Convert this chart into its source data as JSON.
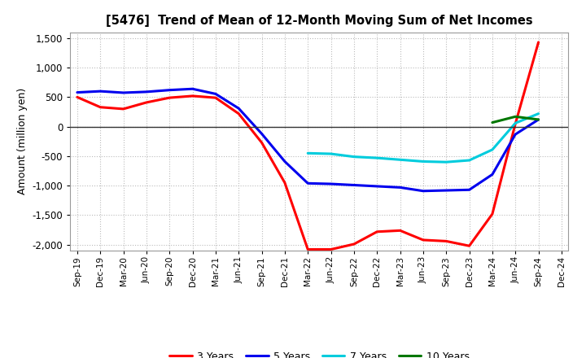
{
  "title": "[5476]  Trend of Mean of 12-Month Moving Sum of Net Incomes",
  "ylabel": "Amount (million yen)",
  "background_color": "#ffffff",
  "grid_color": "#bbbbbb",
  "xlim_labels": [
    "Sep-19",
    "Dec-19",
    "Mar-20",
    "Jun-20",
    "Sep-20",
    "Dec-20",
    "Mar-21",
    "Jun-21",
    "Sep-21",
    "Dec-21",
    "Mar-22",
    "Jun-22",
    "Sep-22",
    "Dec-22",
    "Mar-23",
    "Jun-23",
    "Sep-23",
    "Dec-23",
    "Mar-24",
    "Jun-24",
    "Sep-24",
    "Dec-24"
  ],
  "ylim": [
    -2100,
    1600
  ],
  "yticks": [
    -2000,
    -1500,
    -1000,
    -500,
    0,
    500,
    1000,
    1500
  ],
  "series": {
    "3 Years": {
      "color": "#ff0000",
      "x": [
        0,
        1,
        2,
        3,
        4,
        5,
        6,
        7,
        8,
        9,
        10,
        11,
        12,
        13,
        14,
        15,
        16,
        17,
        18,
        19,
        20
      ],
      "y": [
        500,
        330,
        300,
        410,
        490,
        520,
        490,
        220,
        -270,
        -950,
        -2080,
        -2080,
        -1990,
        -1780,
        -1760,
        -1920,
        -1940,
        -2020,
        -1480,
        50,
        1430
      ]
    },
    "5 Years": {
      "color": "#0000ee",
      "x": [
        0,
        1,
        2,
        3,
        4,
        5,
        6,
        7,
        8,
        9,
        10,
        11,
        12,
        13,
        14,
        15,
        16,
        17,
        18,
        19,
        20
      ],
      "y": [
        580,
        600,
        575,
        590,
        620,
        640,
        555,
        310,
        -120,
        -590,
        -960,
        -970,
        -990,
        -1010,
        -1030,
        -1090,
        -1080,
        -1070,
        -810,
        -130,
        120
      ]
    },
    "7 Years": {
      "color": "#00ccdd",
      "x": [
        10,
        11,
        12,
        13,
        14,
        15,
        16,
        17,
        18,
        19,
        20
      ],
      "y": [
        -450,
        -460,
        -510,
        -530,
        -560,
        -590,
        -600,
        -570,
        -390,
        60,
        220
      ]
    },
    "10 Years": {
      "color": "#007700",
      "x": [
        18,
        19,
        20
      ],
      "y": [
        70,
        170,
        120
      ]
    }
  },
  "legend_labels": [
    "3 Years",
    "5 Years",
    "7 Years",
    "10 Years"
  ]
}
